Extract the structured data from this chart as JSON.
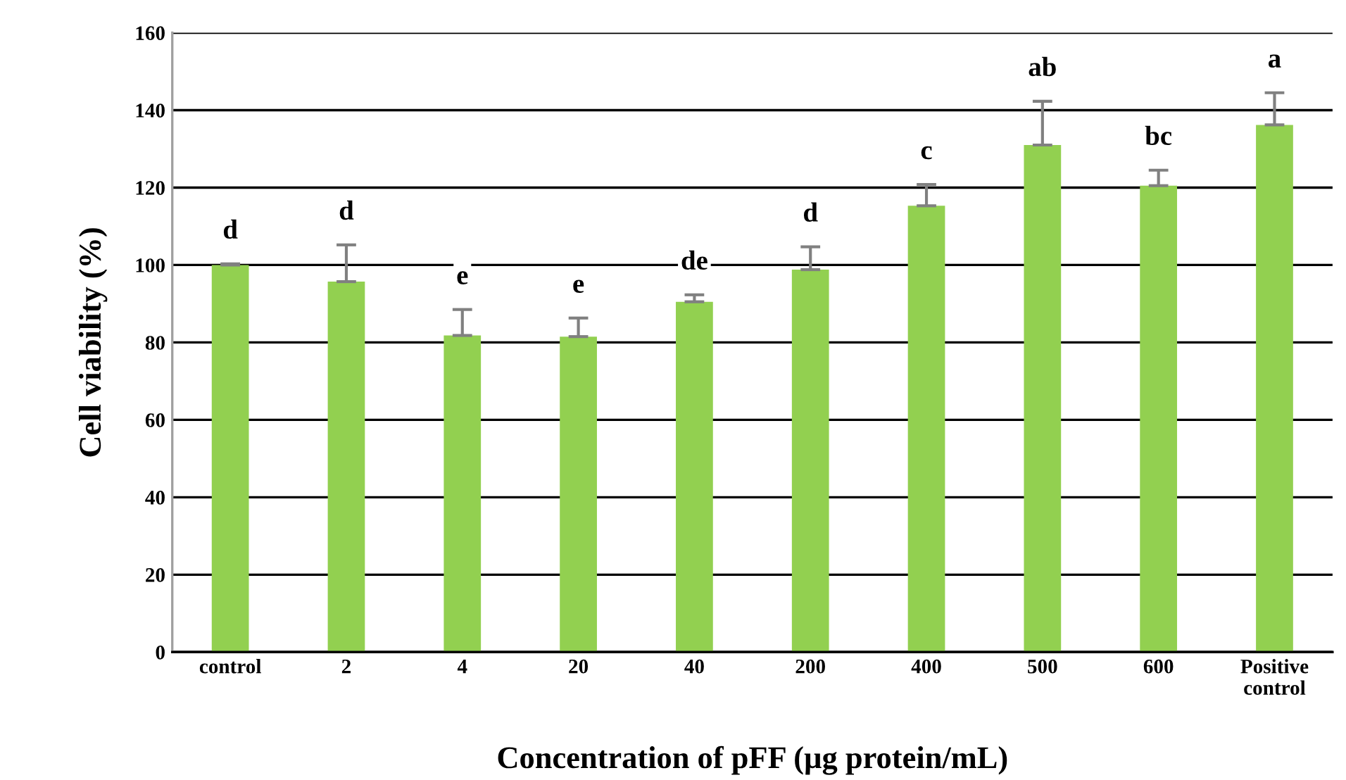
{
  "chart_data": {
    "type": "bar",
    "xlabel": "Concentration of pFF (µg protein/mL)",
    "ylabel": "Cell viability (%)",
    "categories": [
      "control",
      "2",
      "4",
      "20",
      "40",
      "200",
      "400",
      "500",
      "600",
      "Positive\ncontrol"
    ],
    "values": [
      100,
      95.7,
      81.8,
      81.5,
      90.5,
      98.8,
      115.3,
      131,
      120.5,
      136.2
    ],
    "errors": [
      [
        100,
        100.3
      ],
      [
        95.7,
        105.2
      ],
      [
        81.8,
        88.5
      ],
      [
        81.5,
        86.3
      ],
      [
        90.5,
        92.3
      ],
      [
        98.8,
        104.7
      ],
      [
        115.3,
        120.8
      ],
      [
        131,
        142.3
      ],
      [
        120.5,
        124.5
      ],
      [
        136.2,
        144.5
      ]
    ],
    "color": "#92d050",
    "ylim": [
      0,
      160
    ],
    "yticks": [
      0,
      20,
      40,
      60,
      80,
      100,
      120,
      140,
      160
    ],
    "grid": "y",
    "annotations": [
      "d",
      "d",
      "e",
      "e",
      "de",
      "d",
      "c",
      "ab",
      "bc",
      "a"
    ]
  }
}
